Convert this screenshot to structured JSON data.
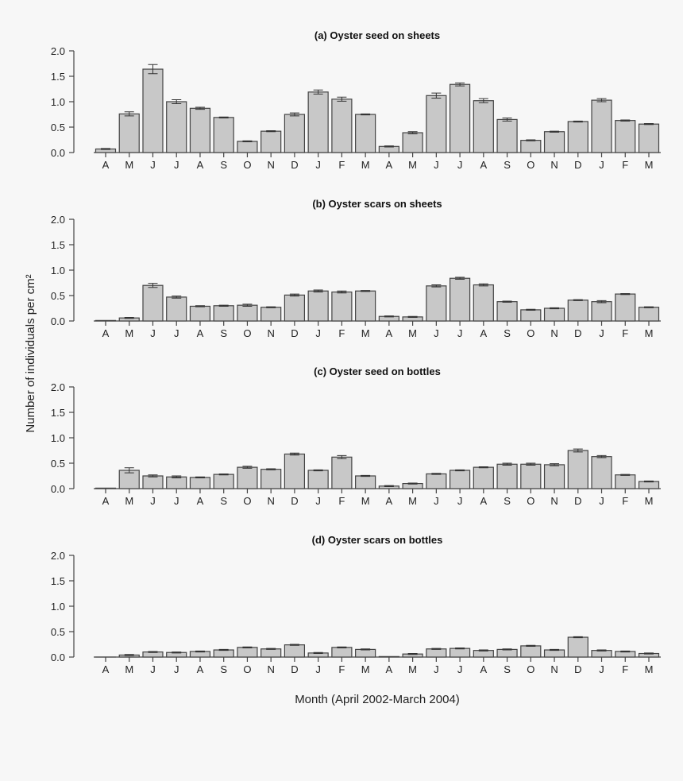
{
  "chart_data": {
    "type": "bar",
    "ylabel": "Number of individuals per cm²",
    "xlabel": "Month (April 2002-March 2004)",
    "ylim": [
      0,
      2.0
    ],
    "yticks": [
      "0.0",
      "0.5",
      "1.0",
      "1.5",
      "2.0"
    ],
    "categories": [
      "A",
      "M",
      "J",
      "J",
      "A",
      "S",
      "O",
      "N",
      "D",
      "J",
      "F",
      "M",
      "A",
      "M",
      "J",
      "J",
      "A",
      "S",
      "O",
      "N",
      "D",
      "J",
      "F",
      "M"
    ],
    "panels": [
      {
        "title": "(a) Oyster seed on sheets",
        "values": [
          0.07,
          0.76,
          1.64,
          1.0,
          0.87,
          0.69,
          0.22,
          0.42,
          0.75,
          1.19,
          1.05,
          0.75,
          0.12,
          0.39,
          1.12,
          1.34,
          1.02,
          0.65,
          0.24,
          0.41,
          0.61,
          1.03,
          0.63,
          0.56
        ],
        "errors": [
          0.01,
          0.04,
          0.09,
          0.04,
          0.02,
          0.01,
          0.01,
          0.01,
          0.03,
          0.04,
          0.04,
          0.01,
          0.01,
          0.02,
          0.05,
          0.03,
          0.04,
          0.03,
          0.01,
          0.01,
          0.01,
          0.03,
          0.01,
          0.01
        ]
      },
      {
        "title": "(b) Oyster scars on sheets",
        "values": [
          0.01,
          0.06,
          0.7,
          0.47,
          0.29,
          0.3,
          0.31,
          0.27,
          0.51,
          0.59,
          0.57,
          0.59,
          0.09,
          0.08,
          0.69,
          0.84,
          0.71,
          0.38,
          0.22,
          0.25,
          0.41,
          0.38,
          0.53,
          0.27
        ],
        "errors": [
          0.0,
          0.01,
          0.04,
          0.02,
          0.01,
          0.01,
          0.02,
          0.01,
          0.02,
          0.02,
          0.02,
          0.01,
          0.01,
          0.01,
          0.02,
          0.02,
          0.02,
          0.01,
          0.01,
          0.01,
          0.01,
          0.02,
          0.01,
          0.01
        ]
      },
      {
        "title": "(c) Oyster seed on bottles",
        "values": [
          0.01,
          0.36,
          0.25,
          0.23,
          0.22,
          0.28,
          0.42,
          0.38,
          0.68,
          0.36,
          0.62,
          0.25,
          0.05,
          0.1,
          0.29,
          0.36,
          0.42,
          0.48,
          0.48,
          0.47,
          0.75,
          0.63,
          0.27,
          0.14
        ],
        "errors": [
          0.0,
          0.05,
          0.02,
          0.02,
          0.01,
          0.01,
          0.02,
          0.01,
          0.02,
          0.01,
          0.03,
          0.01,
          0.01,
          0.01,
          0.01,
          0.01,
          0.01,
          0.02,
          0.02,
          0.02,
          0.03,
          0.02,
          0.01,
          0.01
        ]
      },
      {
        "title": "(d) Oyster scars on bottles",
        "values": [
          0.0,
          0.04,
          0.1,
          0.09,
          0.11,
          0.14,
          0.19,
          0.16,
          0.24,
          0.08,
          0.19,
          0.15,
          0.01,
          0.06,
          0.16,
          0.17,
          0.13,
          0.15,
          0.22,
          0.14,
          0.39,
          0.13,
          0.11,
          0.07
        ],
        "errors": [
          0.0,
          0.01,
          0.01,
          0.01,
          0.01,
          0.01,
          0.01,
          0.01,
          0.01,
          0.01,
          0.01,
          0.01,
          0.0,
          0.01,
          0.01,
          0.01,
          0.01,
          0.01,
          0.01,
          0.01,
          0.01,
          0.01,
          0.01,
          0.01
        ]
      }
    ]
  }
}
